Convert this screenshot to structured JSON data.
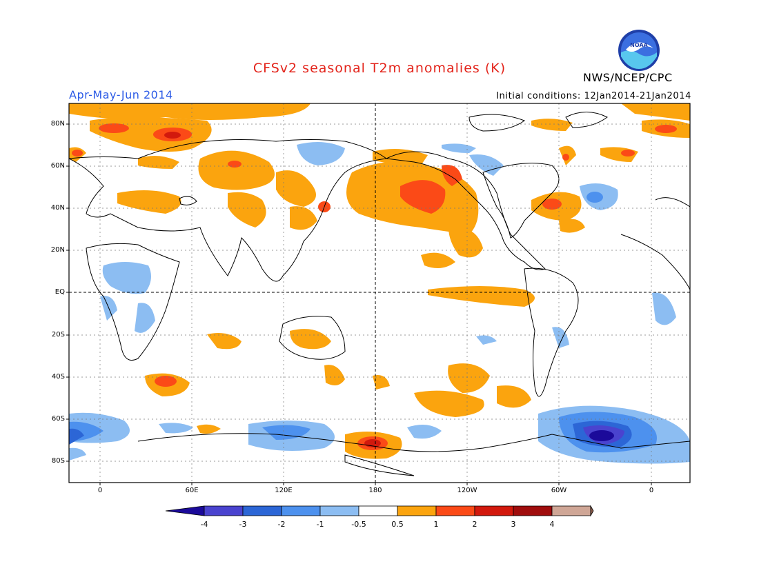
{
  "header": {
    "title": "CFSv2 seasonal T2m anomalies (K)",
    "agency": "NWS/NCEP/CPC",
    "season": "Apr-May-Jun 2014",
    "initial_conditions": "Initial conditions: 12Jan2014-21Jan2014",
    "logo_text": "NOAA"
  },
  "axes": {
    "lat_labels": [
      "80N",
      "60N",
      "40N",
      "20N",
      "EQ",
      "20S",
      "40S",
      "60S",
      "80S"
    ],
    "lon_labels": [
      "0",
      "60E",
      "120E",
      "180",
      "120W",
      "60W",
      "0"
    ]
  },
  "colorbar": {
    "labels": [
      "-4",
      "-3",
      "-2",
      "-1",
      "-0.5",
      "0.5",
      "1",
      "2",
      "3",
      "4"
    ],
    "colors": [
      "#1b0a9a",
      "#4a43cf",
      "#2c66d6",
      "#4d91ee",
      "#8cbdf2",
      "#ffffff",
      "#fba40e",
      "#fb4a17",
      "#d2190d",
      "#a00d0d",
      "#cfa696",
      "#8a5a4a"
    ]
  },
  "colors": {
    "title": "#e3241b",
    "season": "#2c5be6"
  }
}
